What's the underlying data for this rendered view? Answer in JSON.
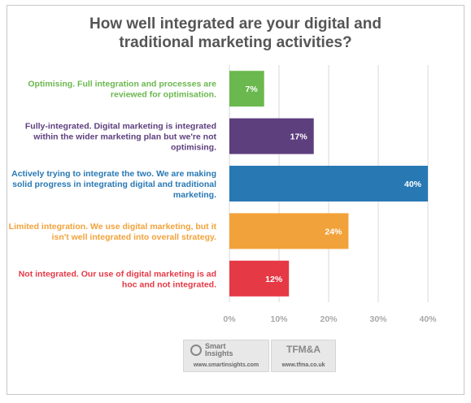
{
  "chart_data": {
    "type": "bar",
    "orientation": "horizontal",
    "title_lines": [
      "How well integrated are your digital and",
      "traditional marketing activities?"
    ],
    "categories": [
      {
        "lines": [
          "Optimising. Full integration and processes are",
          "reviewed for optimisation."
        ],
        "value": 7,
        "value_label": "7%",
        "color": "#6ab84e"
      },
      {
        "lines": [
          "Fully-integrated. Digital marketing is integrated",
          "within the wider marketing plan but we're not",
          "optimising."
        ],
        "value": 17,
        "value_label": "17%",
        "color": "#5e3f7e"
      },
      {
        "lines": [
          "Actively trying to integrate the two. We are making",
          "solid progress in integrating digital and traditional",
          "marketing."
        ],
        "value": 40,
        "value_label": "40%",
        "color": "#2878b4"
      },
      {
        "lines": [
          "Limited integration. We use digital marketing, but it",
          "isn't well integrated into overall strategy."
        ],
        "value": 24,
        "value_label": "24%",
        "color": "#f2a23a"
      },
      {
        "lines": [
          "Not integrated. Our use of digital marketing is ad",
          "hoc and not integrated."
        ],
        "value": 12,
        "value_label": "12%",
        "color": "#e53946"
      }
    ],
    "xlim": [
      0,
      40
    ],
    "ticks": [
      {
        "value": 0,
        "label": "0%"
      },
      {
        "value": 10,
        "label": "10%"
      },
      {
        "value": 20,
        "label": "20%"
      },
      {
        "value": 30,
        "label": "30%"
      },
      {
        "value": 40,
        "label": "40%"
      }
    ],
    "grid": true,
    "colors": {
      "grid": "#d8d8d8",
      "tick_text": "#a8a8a8",
      "title": "#555555"
    }
  },
  "logos": {
    "smart_insights": {
      "name_line1": "Smart",
      "name_line2": "Insights",
      "url": "www.smartinsights.com"
    },
    "tfma": {
      "name": "TFM&A",
      "url": "www.tfma.co.uk"
    }
  }
}
